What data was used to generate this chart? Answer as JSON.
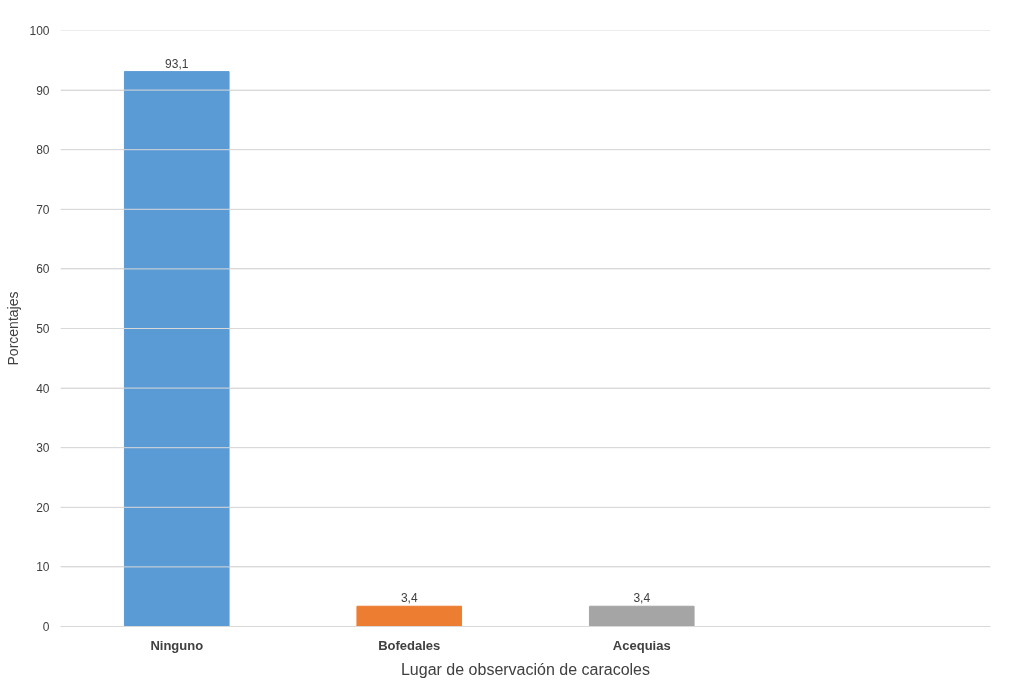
{
  "chart_data": {
    "type": "bar",
    "xlabel": "Lugar de observación de caracoles",
    "ylabel": "Porcentajes",
    "categories": [
      "Ninguno",
      "Bofedales",
      "Acequias",
      null
    ],
    "values": [
      93.1,
      3.4,
      3.4,
      null
    ],
    "colors": [
      "#5b9bd5",
      "#ed7d31",
      "#a5a5a5",
      "#a5a5a5"
    ],
    "value_labels": [
      "93,1",
      "3,4",
      "3,4",
      null
    ],
    "ylim": [
      0,
      100
    ],
    "yticks": [
      0,
      10,
      20,
      30,
      40,
      50,
      60,
      70,
      80,
      90,
      100
    ],
    "grid": "y"
  }
}
